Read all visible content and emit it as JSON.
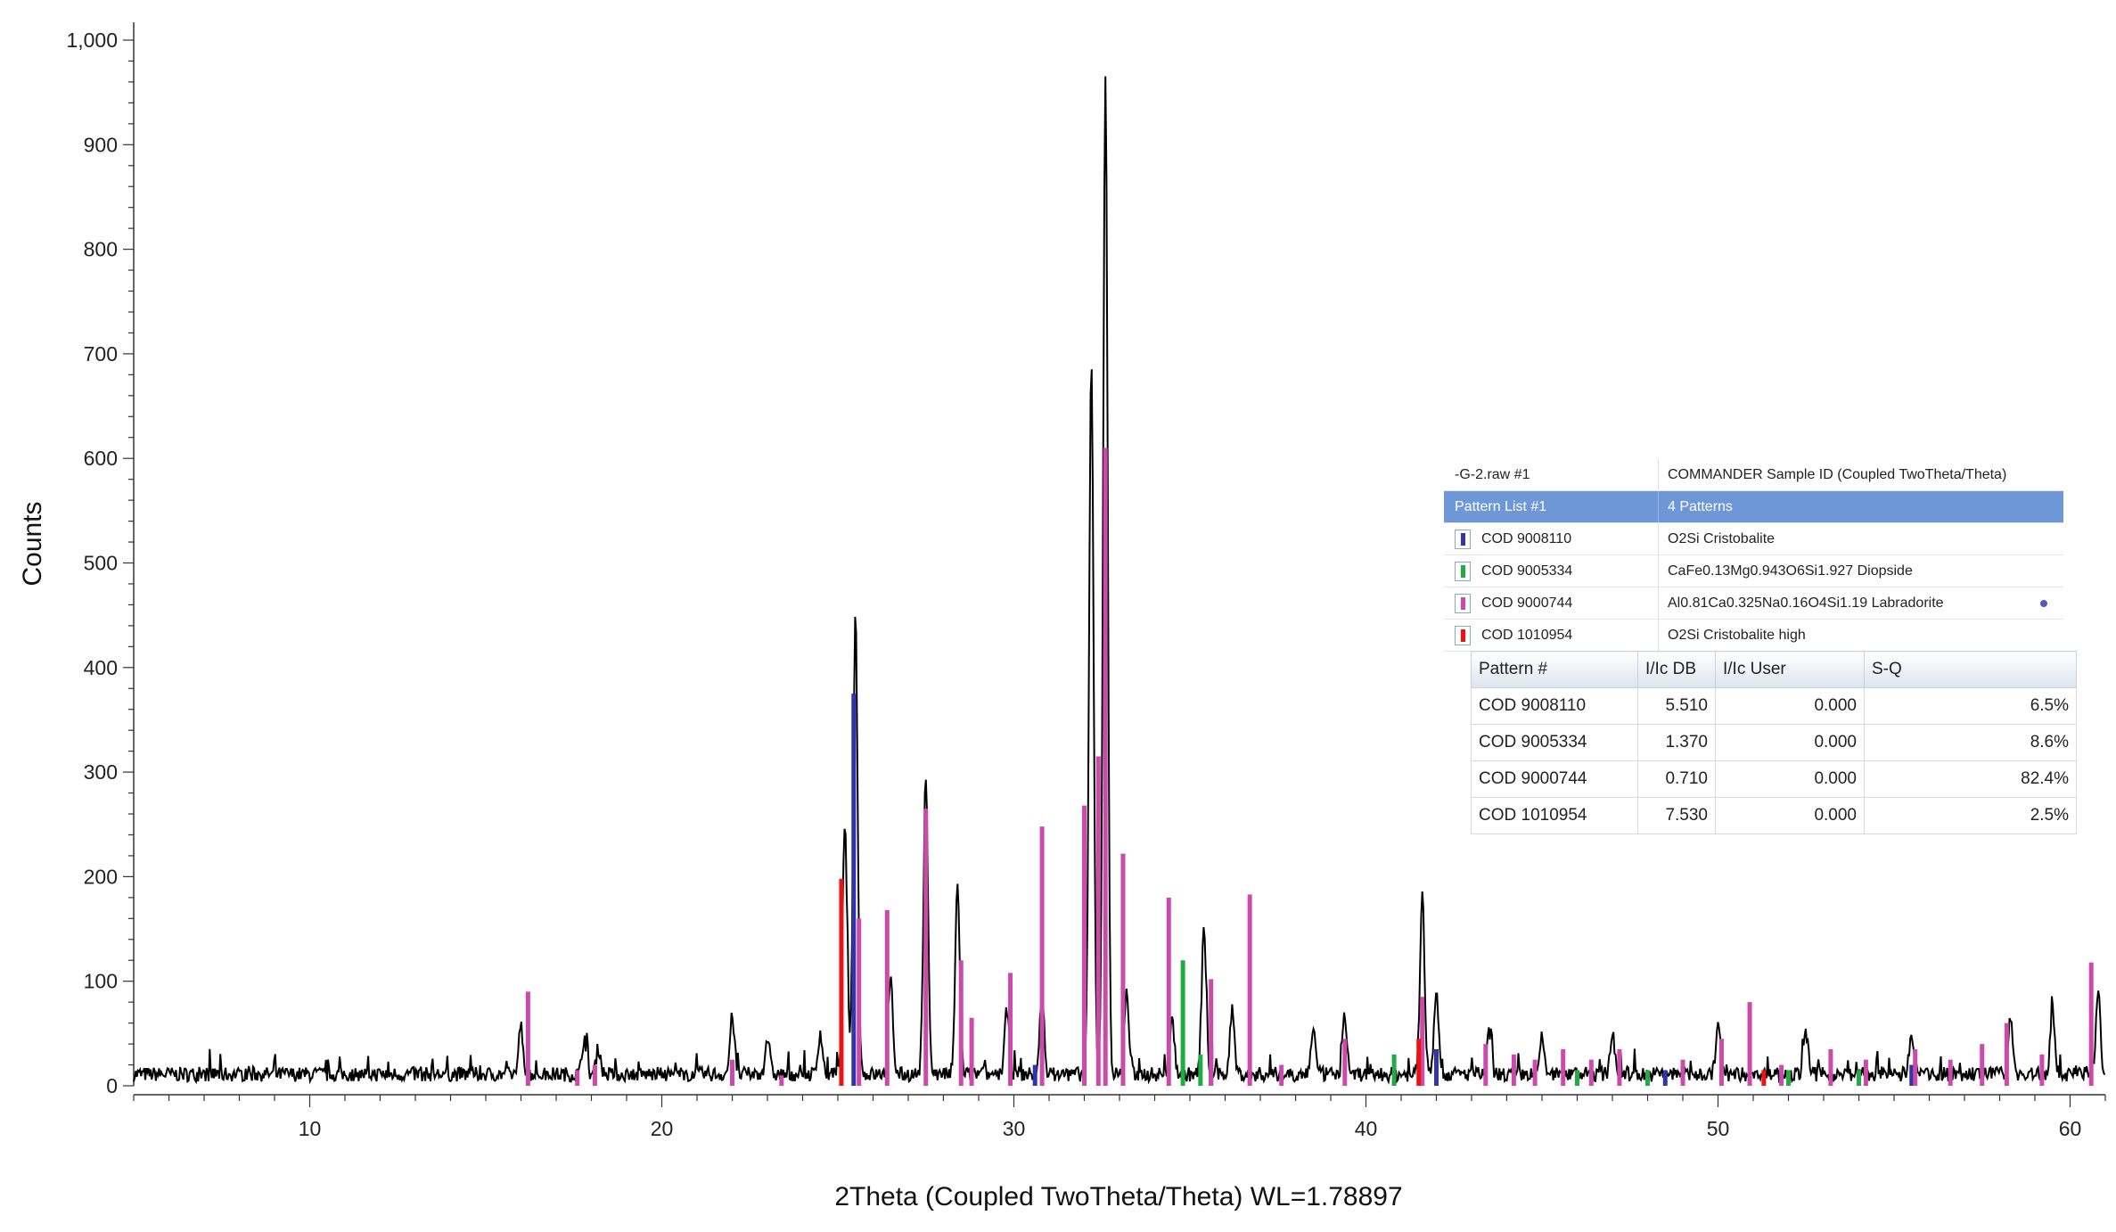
{
  "chart_data": {
    "type": "line",
    "title": "",
    "xlabel": "2Theta (Coupled TwoTheta/Theta) WL=1.78897",
    "ylabel": "Counts",
    "xlim": [
      5,
      61
    ],
    "ylim": [
      0,
      1000
    ],
    "x_ticks": [
      10,
      20,
      30,
      40,
      50,
      60
    ],
    "y_ticks": [
      {
        "value": 0,
        "label": "0"
      },
      {
        "value": 100,
        "label": "100"
      },
      {
        "value": 200,
        "label": "200"
      },
      {
        "value": 300,
        "label": "300"
      },
      {
        "value": 400,
        "label": "400"
      },
      {
        "value": 500,
        "label": "500"
      },
      {
        "value": 600,
        "label": "600"
      },
      {
        "value": 700,
        "label": "700"
      },
      {
        "value": 800,
        "label": "800"
      },
      {
        "value": 900,
        "label": "900"
      },
      {
        "value": 1000,
        "label": "1,000"
      }
    ],
    "grid": false,
    "observed": {
      "color": "#000000",
      "background": 8,
      "peaks": [
        {
          "x": 16.0,
          "y": 45
        },
        {
          "x": 17.8,
          "y": 35
        },
        {
          "x": 18.2,
          "y": 25
        },
        {
          "x": 22.0,
          "y": 55
        },
        {
          "x": 23.0,
          "y": 35
        },
        {
          "x": 24.5,
          "y": 40
        },
        {
          "x": 25.2,
          "y": 240
        },
        {
          "x": 25.5,
          "y": 440
        },
        {
          "x": 26.5,
          "y": 90
        },
        {
          "x": 27.5,
          "y": 280
        },
        {
          "x": 28.4,
          "y": 180
        },
        {
          "x": 29.8,
          "y": 60
        },
        {
          "x": 30.8,
          "y": 75
        },
        {
          "x": 32.2,
          "y": 680
        },
        {
          "x": 32.6,
          "y": 950
        },
        {
          "x": 33.2,
          "y": 80
        },
        {
          "x": 34.5,
          "y": 50
        },
        {
          "x": 35.4,
          "y": 140
        },
        {
          "x": 36.2,
          "y": 60
        },
        {
          "x": 38.5,
          "y": 45
        },
        {
          "x": 39.4,
          "y": 55
        },
        {
          "x": 41.6,
          "y": 170
        },
        {
          "x": 42.0,
          "y": 80
        },
        {
          "x": 43.5,
          "y": 40
        },
        {
          "x": 45.0,
          "y": 35
        },
        {
          "x": 47.0,
          "y": 40
        },
        {
          "x": 50.0,
          "y": 45
        },
        {
          "x": 52.5,
          "y": 40
        },
        {
          "x": 55.5,
          "y": 35
        },
        {
          "x": 58.3,
          "y": 55
        },
        {
          "x": 59.5,
          "y": 60
        },
        {
          "x": 60.8,
          "y": 80
        }
      ]
    },
    "phases": [
      {
        "name": "COD 9008110",
        "color": "#3333aa",
        "sticks": [
          {
            "x": 25.45,
            "y": 375
          },
          {
            "x": 30.6,
            "y": 20
          },
          {
            "x": 35.6,
            "y": 40
          },
          {
            "x": 42.0,
            "y": 35
          },
          {
            "x": 48.5,
            "y": 15
          },
          {
            "x": 55.5,
            "y": 20
          }
        ]
      },
      {
        "name": "COD 9005334",
        "color": "#22aa44",
        "sticks": [
          {
            "x": 34.8,
            "y": 120
          },
          {
            "x": 35.3,
            "y": 30
          },
          {
            "x": 40.8,
            "y": 30
          },
          {
            "x": 46.0,
            "y": 15
          },
          {
            "x": 48.0,
            "y": 15
          },
          {
            "x": 52.0,
            "y": 15
          },
          {
            "x": 54.0,
            "y": 15
          }
        ]
      },
      {
        "name": "COD 9000744",
        "color": "#cc4aaa",
        "sticks": [
          {
            "x": 16.2,
            "y": 90
          },
          {
            "x": 17.6,
            "y": 15
          },
          {
            "x": 18.1,
            "y": 20
          },
          {
            "x": 22.0,
            "y": 25
          },
          {
            "x": 23.4,
            "y": 10
          },
          {
            "x": 25.6,
            "y": 160
          },
          {
            "x": 26.4,
            "y": 168
          },
          {
            "x": 27.5,
            "y": 265
          },
          {
            "x": 28.5,
            "y": 120
          },
          {
            "x": 28.8,
            "y": 65
          },
          {
            "x": 29.9,
            "y": 108
          },
          {
            "x": 30.8,
            "y": 248
          },
          {
            "x": 32.0,
            "y": 268
          },
          {
            "x": 32.4,
            "y": 315
          },
          {
            "x": 32.6,
            "y": 610
          },
          {
            "x": 33.1,
            "y": 222
          },
          {
            "x": 34.4,
            "y": 180
          },
          {
            "x": 35.6,
            "y": 102
          },
          {
            "x": 36.7,
            "y": 183
          },
          {
            "x": 37.6,
            "y": 20
          },
          {
            "x": 39.4,
            "y": 45
          },
          {
            "x": 41.6,
            "y": 85
          },
          {
            "x": 43.4,
            "y": 40
          },
          {
            "x": 44.2,
            "y": 30
          },
          {
            "x": 44.8,
            "y": 25
          },
          {
            "x": 45.6,
            "y": 35
          },
          {
            "x": 46.4,
            "y": 25
          },
          {
            "x": 47.2,
            "y": 35
          },
          {
            "x": 49.0,
            "y": 25
          },
          {
            "x": 50.1,
            "y": 45
          },
          {
            "x": 50.9,
            "y": 80
          },
          {
            "x": 51.8,
            "y": 20
          },
          {
            "x": 53.2,
            "y": 35
          },
          {
            "x": 54.2,
            "y": 25
          },
          {
            "x": 55.6,
            "y": 35
          },
          {
            "x": 56.6,
            "y": 25
          },
          {
            "x": 57.5,
            "y": 40
          },
          {
            "x": 58.2,
            "y": 60
          },
          {
            "x": 59.2,
            "y": 30
          },
          {
            "x": 60.6,
            "y": 118
          }
        ]
      },
      {
        "name": "COD 1010954",
        "color": "#ee1111",
        "sticks": [
          {
            "x": 25.1,
            "y": 198
          },
          {
            "x": 41.5,
            "y": 45
          },
          {
            "x": 51.3,
            "y": 15
          }
        ]
      }
    ]
  },
  "legend_panel": {
    "header_left": "-G-2.raw #1",
    "header_right": "COMMANDER Sample ID (Coupled TwoTheta/Theta)",
    "selected_left": "Pattern List #1",
    "selected_right": "4 Patterns",
    "rows": [
      {
        "id": "COD 9008110",
        "desc": "O2Si Cristobalite",
        "color": "#3333aa"
      },
      {
        "id": "COD 9005334",
        "desc": "CaFe0.13Mg0.943O6Si1.927 Diopside",
        "color": "#22aa44"
      },
      {
        "id": "COD 9000744",
        "desc": "Al0.81Ca0.325Na0.16O4Si1.19 Labradorite",
        "color": "#cc4aaa"
      },
      {
        "id": "COD 1010954",
        "desc": "O2Si Cristobalite high",
        "color": "#ee1111"
      }
    ]
  },
  "sq_table": {
    "headers": [
      "Pattern #",
      "I/Ic DB",
      "I/Ic User",
      "S-Q"
    ],
    "rows": [
      [
        "COD 9008110",
        "5.510",
        "0.000",
        "6.5%"
      ],
      [
        "COD 9005334",
        "1.370",
        "0.000",
        "8.6%"
      ],
      [
        "COD 9000744",
        "0.710",
        "0.000",
        "82.4%"
      ],
      [
        "COD 1010954",
        "7.530",
        "0.000",
        "2.5%"
      ]
    ]
  }
}
